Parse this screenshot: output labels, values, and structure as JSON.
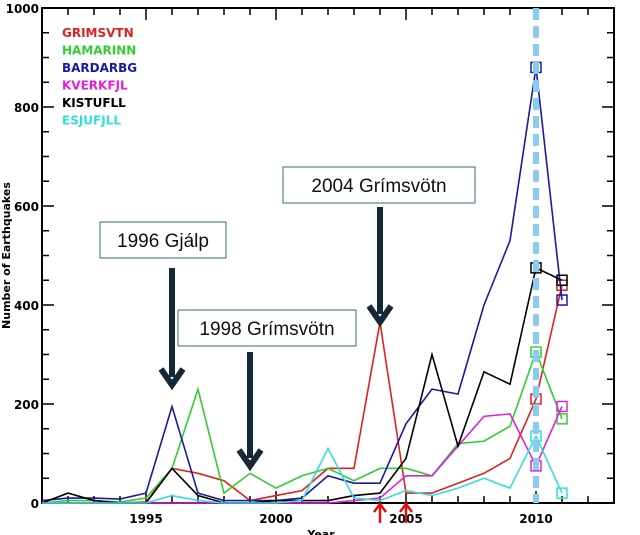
{
  "chart_data": {
    "type": "line",
    "xlabel": "Year",
    "ylabel": "Number of Earthquakes",
    "xlim": [
      1991,
      2013
    ],
    "ylim": [
      0,
      1000
    ],
    "xticks": [
      1995,
      2000,
      2005,
      2010
    ],
    "yticks": [
      0,
      200,
      400,
      600,
      800,
      1000
    ],
    "grid": false,
    "legend_position": "top-left",
    "x": [
      1991,
      1992,
      1993,
      1994,
      1995,
      1996,
      1997,
      1998,
      1999,
      2000,
      2001,
      2002,
      2003,
      2004,
      2005,
      2006,
      2007,
      2008,
      2009,
      2010,
      2011
    ],
    "series": [
      {
        "name": "GRIMSVTN",
        "color": "#e02020",
        "values": [
          0,
          0,
          0,
          0,
          2,
          70,
          60,
          45,
          5,
          15,
          25,
          70,
          70,
          365,
          20,
          20,
          40,
          60,
          90,
          210,
          440
        ]
      },
      {
        "name": "HAMARINN",
        "color": "#33cc33",
        "values": [
          0,
          5,
          5,
          2,
          10,
          70,
          230,
          20,
          60,
          30,
          55,
          70,
          45,
          70,
          70,
          55,
          120,
          125,
          155,
          305,
          170
        ]
      },
      {
        "name": "BARDARBG",
        "color": "#1a1aa0",
        "values": [
          5,
          10,
          10,
          8,
          20,
          195,
          20,
          5,
          5,
          5,
          10,
          55,
          40,
          40,
          160,
          230,
          220,
          400,
          530,
          880,
          410
        ]
      },
      {
        "name": "KVERKFJL",
        "color": "#dd22dd",
        "values": [
          0,
          0,
          0,
          0,
          0,
          0,
          0,
          0,
          0,
          0,
          0,
          0,
          5,
          10,
          55,
          55,
          115,
          175,
          180,
          75,
          195
        ]
      },
      {
        "name": "KISTUFLL",
        "color": "#000000",
        "values": [
          0,
          20,
          5,
          0,
          0,
          70,
          15,
          0,
          0,
          5,
          5,
          5,
          15,
          20,
          90,
          300,
          115,
          265,
          240,
          475,
          450
        ]
      },
      {
        "name": "ESJUFJLL",
        "color": "#33dddd",
        "values": [
          0,
          0,
          0,
          0,
          0,
          15,
          5,
          0,
          0,
          0,
          5,
          110,
          10,
          5,
          25,
          15,
          30,
          50,
          30,
          135,
          20
        ]
      }
    ],
    "marked_years": [
      2010,
      2011
    ],
    "vertical_line": {
      "x": 2010,
      "color": "#88ccee",
      "style": "dashed"
    },
    "annotations": [
      {
        "text": "1996 Gjálp",
        "arrow_x": 1996
      },
      {
        "text": "1998 Grímsvötn",
        "arrow_x": 1999
      },
      {
        "text": "2004 Grímsvötn",
        "arrow_x": 2004
      }
    ],
    "red_arrows": [
      2004,
      2005
    ]
  }
}
